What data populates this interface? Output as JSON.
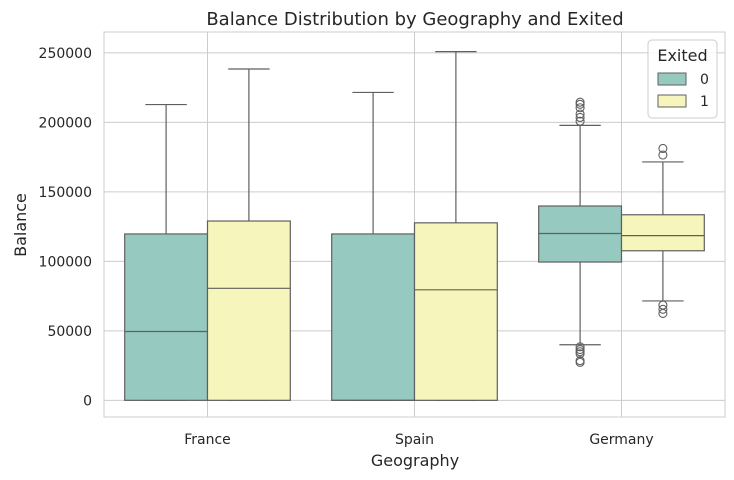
{
  "chart_data": {
    "type": "box",
    "title": "Balance Distribution by Geography and Exited",
    "xlabel": "Geography",
    "ylabel": "Balance",
    "categories": [
      "France",
      "Spain",
      "Germany"
    ],
    "ylim": [
      -12000,
      265000
    ],
    "yticks": [
      0,
      50000,
      100000,
      150000,
      200000,
      250000
    ],
    "ytick_labels": [
      "0",
      "50000",
      "100000",
      "150000",
      "200000",
      "250000"
    ],
    "grid": true,
    "legend": {
      "title": "Exited",
      "placement": "top-right"
    },
    "series": [
      {
        "name": "0",
        "color": "#96cac1",
        "boxes": [
          {
            "category": "France",
            "whislo": 0,
            "q1": 0,
            "med": 49500,
            "q3": 119700,
            "whishi": 212800,
            "fliers": []
          },
          {
            "category": "Spain",
            "whislo": 0,
            "q1": 0,
            "med": 0,
            "q3": 119700,
            "whishi": 221500,
            "fliers": []
          },
          {
            "category": "Germany",
            "whislo": 40000,
            "q1": 99500,
            "med": 120000,
            "q3": 139800,
            "whishi": 197800,
            "fliers": [
              200800,
              203500,
              206000,
              210500,
              213000,
              214500,
              38500,
              36500,
              35000,
              33500,
              28500,
              27300
            ]
          }
        ]
      },
      {
        "name": "1",
        "color": "#f6f6bc",
        "boxes": [
          {
            "category": "France",
            "whislo": 0,
            "q1": 0,
            "med": 80600,
            "q3": 129000,
            "whishi": 238400,
            "fliers": []
          },
          {
            "category": "Spain",
            "whislo": 0,
            "q1": 0,
            "med": 79500,
            "q3": 127700,
            "whishi": 250900,
            "fliers": []
          },
          {
            "category": "Germany",
            "whislo": 71500,
            "q1": 107600,
            "med": 118500,
            "q3": 133500,
            "whishi": 171500,
            "fliers": [
              181200,
              176500,
              68500,
              65500,
              62500
            ]
          }
        ]
      }
    ]
  }
}
